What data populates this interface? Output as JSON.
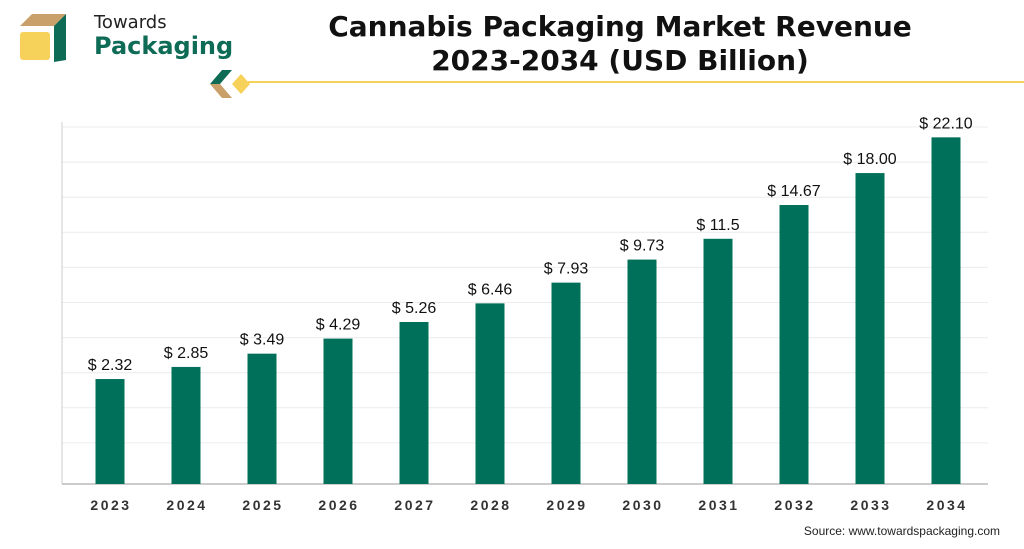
{
  "logo": {
    "line1": "Towards",
    "line2": "Packaging"
  },
  "source": "Source: www.towardspackaging.com",
  "colors": {
    "bar": "#00705A",
    "accent": "#F7D25A",
    "brand_tan": "#C9A06A"
  },
  "chart_data": {
    "type": "bar",
    "title": "Cannabis Packaging Market Revenue",
    "subtitle": "2023-2034 (USD Billion)",
    "categories": [
      "2023",
      "2024",
      "2025",
      "2026",
      "2027",
      "2028",
      "2029",
      "2030",
      "2031",
      "2032",
      "2033",
      "2034"
    ],
    "values": [
      2.32,
      2.85,
      3.49,
      4.29,
      5.26,
      6.46,
      7.93,
      9.73,
      11.5,
      14.67,
      18.0,
      22.1
    ],
    "labels": [
      "$ 2.32",
      "$ 2.85",
      "$ 3.49",
      "$ 4.29",
      "$ 5.26",
      "$ 6.46",
      "$ 7.93",
      "$ 9.73",
      "$ 11.5",
      "$ 14.67",
      "$ 18.00",
      "$ 22.10"
    ],
    "xlabel": "",
    "ylabel": "",
    "grid": true,
    "legend": "none"
  }
}
